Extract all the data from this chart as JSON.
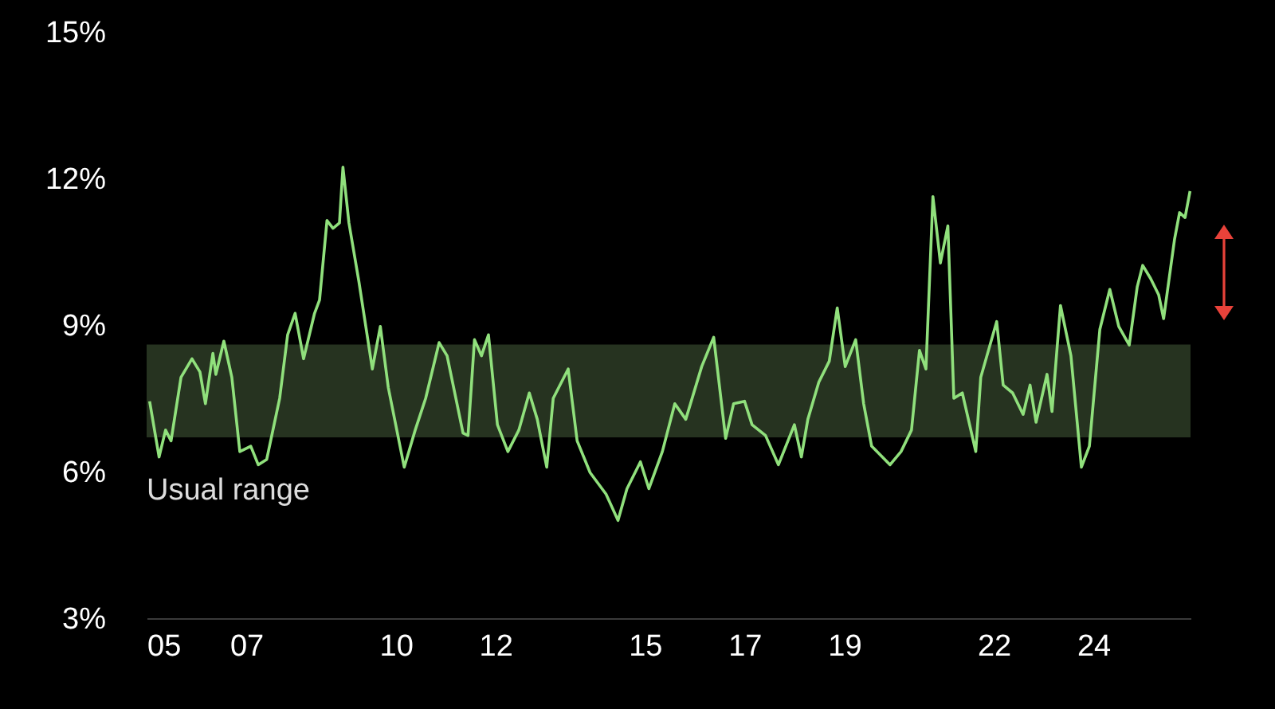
{
  "chart_data": {
    "type": "line",
    "x": [
      2005.06,
      2005.25,
      2005.38,
      2005.49,
      2005.69,
      2005.91,
      2006.07,
      2006.18,
      2006.33,
      2006.39,
      2006.55,
      2006.71,
      2006.87,
      2007.09,
      2007.24,
      2007.41,
      2007.67,
      2007.83,
      2007.98,
      2008.15,
      2008.37,
      2008.47,
      2008.62,
      2008.74,
      2008.87,
      2008.94,
      2009.06,
      2009.26,
      2009.53,
      2009.69,
      2009.85,
      2010.17,
      2010.39,
      2010.6,
      2010.87,
      2011.03,
      2011.35,
      2011.45,
      2011.58,
      2011.72,
      2011.86,
      2012.04,
      2012.25,
      2012.47,
      2012.68,
      2012.84,
      2013.03,
      2013.16,
      2013.46,
      2013.64,
      2013.9,
      2014.22,
      2014.46,
      2014.64,
      2014.91,
      2015.08,
      2015.35,
      2015.6,
      2015.82,
      2016.14,
      2016.38,
      2016.62,
      2016.78,
      2017.0,
      2017.15,
      2017.42,
      2017.68,
      2018.0,
      2018.14,
      2018.27,
      2018.49,
      2018.7,
      2018.86,
      2019.02,
      2019.23,
      2019.39,
      2019.55,
      2019.92,
      2020.14,
      2020.35,
      2020.51,
      2020.64,
      2020.78,
      2020.93,
      2021.08,
      2021.2,
      2021.37,
      2021.64,
      2021.74,
      2022.06,
      2022.19,
      2022.38,
      2022.59,
      2022.73,
      2022.85,
      2023.07,
      2023.17,
      2023.34,
      2023.55,
      2023.76,
      2023.92,
      2024.13,
      2024.33,
      2024.51,
      2024.72,
      2024.88,
      2024.99,
      2025.15,
      2025.31,
      2025.41,
      2025.63,
      2025.73,
      2025.84,
      2025.94
    ],
    "series": [
      {
        "color": "#90e07c",
        "values": [
          7.44,
          6.3,
          6.85,
          6.63,
          7.93,
          8.31,
          8.04,
          7.39,
          8.42,
          7.99,
          8.67,
          7.93,
          6.41,
          6.52,
          6.14,
          6.25,
          7.5,
          8.8,
          9.24,
          8.31,
          9.24,
          9.51,
          11.14,
          10.98,
          11.09,
          12.23,
          11.09,
          9.89,
          8.1,
          8.97,
          7.72,
          6.09,
          6.85,
          7.5,
          8.64,
          8.37,
          6.79,
          6.74,
          8.7,
          8.37,
          8.8,
          6.96,
          6.41,
          6.85,
          7.61,
          7.07,
          6.09,
          7.5,
          8.1,
          6.63,
          5.98,
          5.54,
          5.0,
          5.65,
          6.2,
          5.65,
          6.41,
          7.39,
          7.07,
          8.15,
          8.75,
          6.68,
          7.39,
          7.44,
          6.96,
          6.74,
          6.14,
          6.96,
          6.3,
          7.07,
          7.83,
          8.26,
          9.35,
          8.15,
          8.7,
          7.39,
          6.52,
          6.14,
          6.41,
          6.85,
          8.48,
          8.1,
          11.63,
          10.27,
          11.03,
          7.5,
          7.61,
          6.41,
          7.93,
          9.07,
          7.77,
          7.61,
          7.17,
          7.77,
          7.01,
          7.99,
          7.23,
          9.4,
          8.37,
          6.09,
          6.52,
          8.91,
          9.73,
          8.97,
          8.59,
          9.78,
          10.22,
          9.95,
          9.62,
          9.13,
          10.76,
          11.3,
          11.2,
          11.74
        ]
      }
    ],
    "xlim": [
      2005,
      2025.95
    ],
    "xticks": [
      {
        "value": 2005,
        "label": "05"
      },
      {
        "value": 2007,
        "label": "07"
      },
      {
        "value": 2010,
        "label": "10"
      },
      {
        "value": 2012,
        "label": "12"
      },
      {
        "value": 2015,
        "label": "15"
      },
      {
        "value": 2017,
        "label": "17"
      },
      {
        "value": 2019,
        "label": "19"
      },
      {
        "value": 2022,
        "label": "22"
      },
      {
        "value": 2024,
        "label": "24"
      }
    ],
    "ylim": [
      3,
      15
    ],
    "yticks": [
      {
        "value": 3,
        "label": "3%"
      },
      {
        "value": 6,
        "label": "6%"
      },
      {
        "value": 9,
        "label": "9%"
      },
      {
        "value": 12,
        "label": "12%"
      },
      {
        "value": 15,
        "label": "15%"
      }
    ],
    "bands": [
      {
        "axis": "y",
        "from": 6.7,
        "to": 8.6,
        "label": "Usual range",
        "color": "#263320"
      }
    ]
  }
}
